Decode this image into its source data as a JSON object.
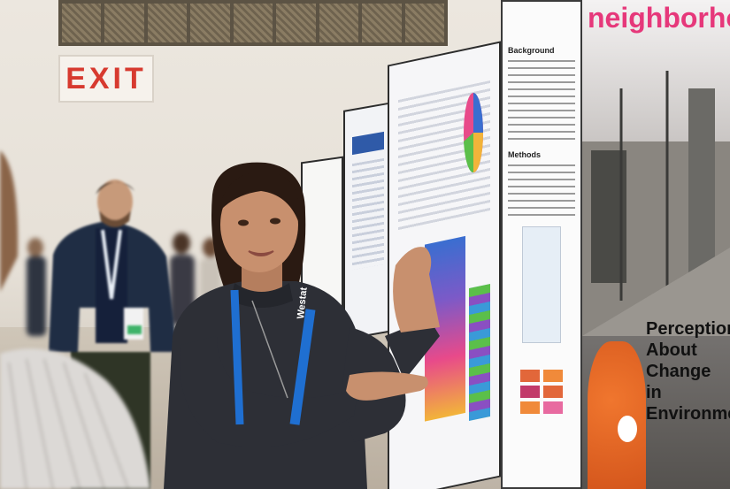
{
  "scene": {
    "description_tags": [
      "poster-session",
      "conference",
      "presenter"
    ],
    "sign": {
      "text": "EXIT",
      "color": "#d73a2f"
    },
    "poster": {
      "headline": "neighborhood",
      "sections": [
        "Background",
        "Methods"
      ],
      "photo_caption_lines": [
        "Perceptions",
        "About",
        "Change in",
        "Environment"
      ],
      "accent_color": "#e6387a"
    },
    "lanyard": {
      "text": "Westat",
      "color": "#1f6fd1"
    }
  }
}
